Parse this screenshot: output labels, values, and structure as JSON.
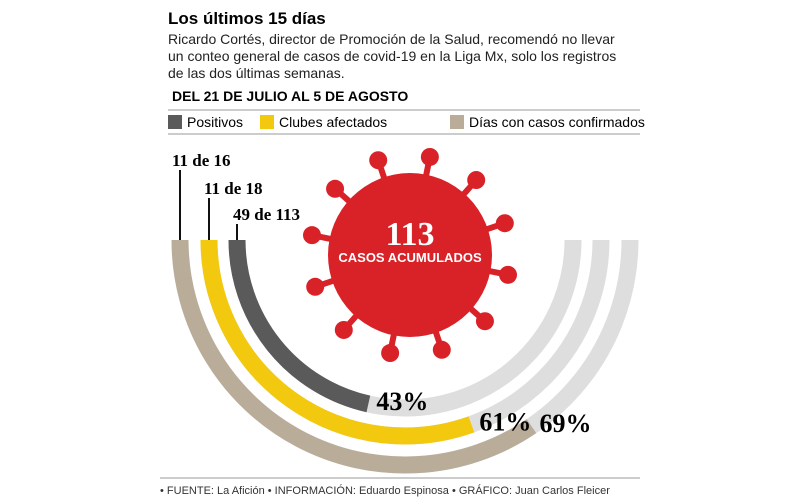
{
  "chart_data": {
    "type": "radial_bar",
    "title": "Los últimos 15 días",
    "subtitle": [
      "Ricardo Cortés, director de Promoción de la Salud, recomendó no llevar",
      "un conteo general de casos de covid-19 en la Liga Mx, solo los registros",
      "de las dos últimas semanas."
    ],
    "period": "DEL 21 DE JULIO AL 5 DE AGOSTO",
    "series": [
      {
        "name": "Positivos",
        "color": "#5a5a5a",
        "values": [
          43
        ],
        "value_labels": [
          "43%"
        ],
        "count_label": "49 de 113"
      },
      {
        "name": "Clubes afectados",
        "color": "#f3c90f",
        "values": [
          61
        ],
        "value_labels": [
          "61%"
        ],
        "count_label": "11 de 18"
      },
      {
        "name": "Días con casos confirmados",
        "color": "#b9ad9a",
        "values": [
          69
        ],
        "value_labels": [
          "69%"
        ],
        "count_label": "11 de 16"
      }
    ],
    "ylim": [
      0,
      100
    ],
    "center_value": "113",
    "center_label": "CASOS ACUMULADOS",
    "credits": "• FUENTE: La Afición • INFORMACIÓN: Eduardo Espinosa • GRÁFICO: Juan Carlos Fleicer"
  }
}
